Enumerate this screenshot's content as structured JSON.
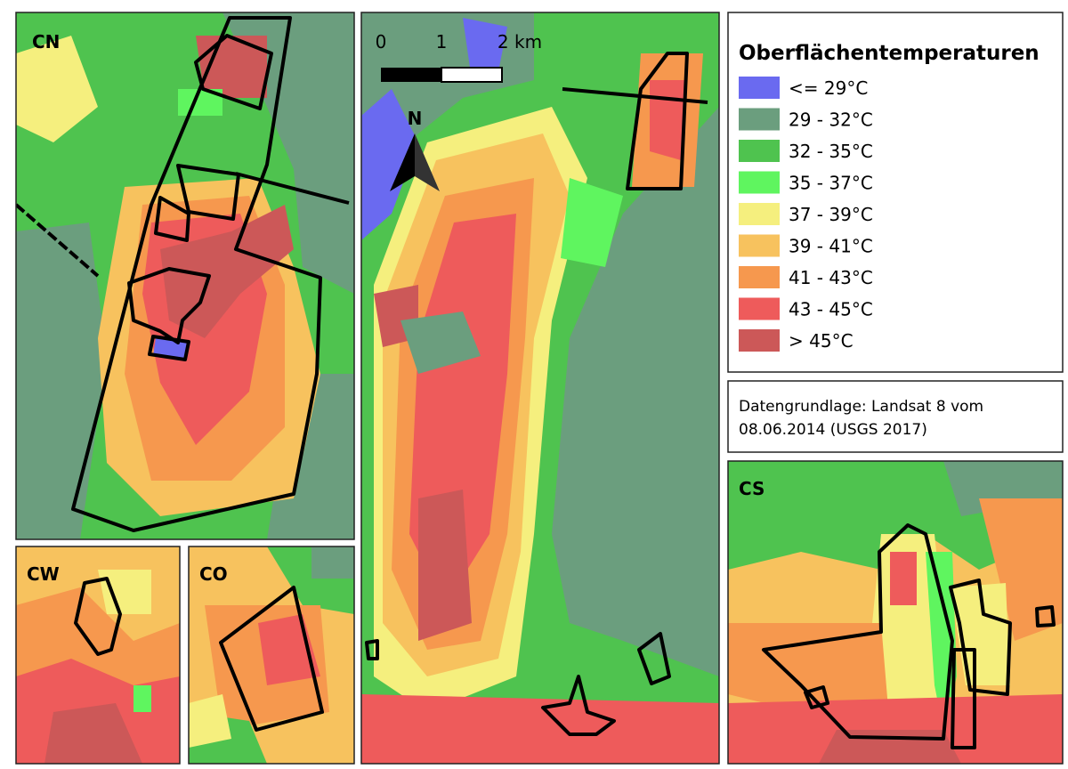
{
  "panels": {
    "cn": "CN",
    "cw": "CW",
    "co": "CO",
    "cs": "CS"
  },
  "scale_bar": {
    "labels": [
      "0",
      "1",
      "2 km"
    ]
  },
  "north_arrow": "N",
  "legend": {
    "title": "Oberflächentemperaturen",
    "items": [
      {
        "label": "<= 29°C",
        "color": "#6a6af0"
      },
      {
        "label": "29 - 32°C",
        "color": "#6b9e7e"
      },
      {
        "label": "32 - 35°C",
        "color": "#4fc34f"
      },
      {
        "label": "35 - 37°C",
        "color": "#5ff55f"
      },
      {
        "label": "37 - 39°C",
        "color": "#f5ef7e"
      },
      {
        "label": "39 - 41°C",
        "color": "#f7c25e"
      },
      {
        "label": "41 - 43°C",
        "color": "#f6984e"
      },
      {
        "label": "43 - 45°C",
        "color": "#ee5b5b"
      },
      {
        "label": "> 45°C",
        "color": "#cc5858"
      }
    ]
  },
  "source": {
    "lines": [
      "Datengrundlage: Landsat 8 vom",
      "08.06.2014 (USGS 2017)"
    ]
  }
}
